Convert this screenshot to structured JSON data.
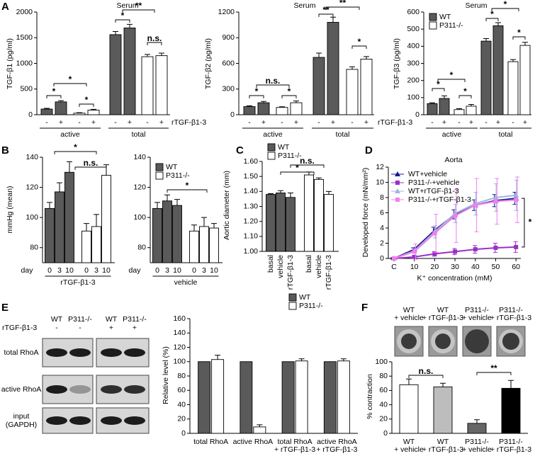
{
  "chart_data": [
    {
      "panel": "A",
      "type": "bar",
      "title": "Serum",
      "ylabel": "TGF-β1 (pg/ml)",
      "categories": [
        "active",
        "total"
      ],
      "treatments": [
        "-",
        "+"
      ],
      "series": [
        {
          "color": "#5a5a5a",
          "values": [
            [
              110,
              250
            ],
            [
              1560,
              1690
            ]
          ],
          "errors": [
            [
              15,
              25
            ],
            [
              60,
              70
            ]
          ]
        },
        {
          "color": "#ffffff",
          "values": [
            [
              30,
              90
            ],
            [
              1130,
              1150
            ]
          ],
          "errors": [
            [
              10,
              15
            ],
            [
              45,
              50
            ]
          ]
        }
      ],
      "ylim": [
        0,
        2000
      ],
      "yticks": [
        0,
        500,
        1000,
        1500,
        2000
      ],
      "annotations": [
        "*",
        "*",
        "*",
        "*",
        "**",
        "n.s."
      ]
    },
    {
      "type": "bar",
      "title": "Serum",
      "ylabel": "TGF-β2 (pg/ml)",
      "categories": [
        "active",
        "total"
      ],
      "treatments": [
        "-",
        "+"
      ],
      "treatment_axis_label": "rTGF-β1-3",
      "series": [
        {
          "color": "#5a5a5a",
          "values": [
            [
              95,
              140
            ],
            [
              670,
              1080
            ]
          ],
          "errors": [
            [
              10,
              15
            ],
            [
              50,
              60
            ]
          ]
        },
        {
          "color": "#ffffff",
          "values": [
            [
              85,
              140
            ],
            [
              530,
              650
            ]
          ],
          "errors": [
            [
              8,
              20
            ],
            [
              30,
              30
            ]
          ]
        }
      ],
      "ylim": [
        0,
        1200
      ],
      "yticks": [
        0,
        300,
        600,
        900,
        1200
      ],
      "annotations": [
        "*",
        "*",
        "n.s.",
        "**",
        "**",
        "*"
      ]
    },
    {
      "type": "bar",
      "title": "Serum",
      "ylabel": "TGF-β3 (pg/ml)",
      "categories": [
        "active",
        "total"
      ],
      "treatments": [
        "-",
        "+"
      ],
      "treatment_axis_label": "rTGF-β1-3",
      "series": [
        {
          "name": "WT",
          "color": "#5a5a5a",
          "values": [
            [
              65,
              95
            ],
            [
              430,
              520
            ]
          ],
          "errors": [
            [
              5,
              15
            ],
            [
              15,
              18
            ]
          ]
        },
        {
          "name": "P311-/-",
          "color": "#ffffff",
          "values": [
            [
              30,
              50
            ],
            [
              310,
              405
            ]
          ],
          "errors": [
            [
              5,
              10
            ],
            [
              12,
              18
            ]
          ]
        }
      ],
      "ylim": [
        0,
        600
      ],
      "yticks": [
        0,
        100,
        200,
        300,
        400,
        500,
        600
      ],
      "legend": "upper left",
      "annotations": [
        "*",
        "*",
        "*",
        "*",
        "*",
        "*"
      ]
    },
    {
      "panel": "B",
      "type": "bar",
      "ylabel": "mmHg (mean)",
      "x_prefix": "day",
      "xlabel": "rTGF-β1-3",
      "categories": [
        "0",
        "3",
        "10"
      ],
      "series": [
        {
          "color": "#5a5a5a",
          "values": [
            106,
            117,
            130
          ],
          "errors": [
            4,
            6,
            7
          ]
        },
        {
          "color": "#ffffff",
          "values": [
            91,
            94,
            128
          ],
          "errors": [
            5,
            8,
            7
          ]
        }
      ],
      "ylim": [
        70,
        140
      ],
      "yticks": [
        80,
        100,
        120,
        140
      ],
      "annotations": [
        "*",
        "n.s."
      ]
    },
    {
      "type": "bar",
      "x_prefix": "day",
      "xlabel": "vehicle",
      "categories": [
        "0",
        "3",
        "10"
      ],
      "series": [
        {
          "name": "WT",
          "color": "#5a5a5a",
          "values": [
            106,
            111,
            108
          ],
          "errors": [
            4,
            4,
            4
          ]
        },
        {
          "name": "P311-/-",
          "color": "#ffffff",
          "values": [
            91,
            94,
            93
          ],
          "errors": [
            4,
            6,
            3
          ]
        }
      ],
      "ylim": [
        70,
        140
      ],
      "yticks": [
        80,
        100,
        120,
        140
      ],
      "legend": "upper left",
      "annotations": [
        "*"
      ]
    },
    {
      "panel": "C",
      "type": "bar",
      "ylabel": "Aortic diameter (mm)",
      "categories": [
        "basal",
        "vehicle",
        "rTGF-β1-3"
      ],
      "series": [
        {
          "name": "WT",
          "color": "#5a5a5a",
          "values": [
            1.38,
            1.39,
            1.36
          ],
          "errors": [
            0.005,
            0.015,
            0.03
          ]
        },
        {
          "name": "P311-/-",
          "color": "#ffffff",
          "values": [
            1.51,
            1.48,
            1.38
          ],
          "errors": [
            0.02,
            0.01,
            0.02
          ]
        }
      ],
      "ylim": [
        1,
        1.6
      ],
      "yticks": [
        {
          "value": 1,
          "label": "1.00"
        },
        {
          "value": 1.1,
          "label": "1.10"
        },
        {
          "value": 1.2,
          "label": "1.20"
        },
        {
          "value": 1.3,
          "label": "1.30"
        },
        {
          "value": 1.4,
          "label": "1.40"
        },
        {
          "value": 1.5,
          "label": "1.50"
        },
        {
          "value": 1.6,
          "label": "1.60"
        }
      ],
      "legend": "top",
      "annotations": [
        "*",
        "n.s."
      ]
    },
    {
      "panel": "D",
      "type": "line",
      "title": "Aorta",
      "ylabel": "Developed force (mN/mm²)",
      "xlabel": "K⁺ concentration (mM)",
      "categories": [
        "C",
        "10",
        "20",
        "30",
        "40",
        "50",
        "60"
      ],
      "series": [
        {
          "name": "WT+vehicle",
          "color": "#1a1a8c",
          "values": [
            0,
            1.2,
            3.7,
            5.8,
            7.0,
            7.6,
            7.9
          ],
          "errors": [
            0.1,
            0.2,
            0.4,
            0.6,
            0.7,
            0.8,
            0.8
          ]
        },
        {
          "name": "P311-/-+vehicle",
          "color": "#9b30c8",
          "values": [
            0,
            0.2,
            0.6,
            0.9,
            1.2,
            1.4,
            1.5
          ],
          "errors": [
            0.1,
            0.2,
            0.3,
            0.4,
            0.5,
            0.6,
            0.7
          ]
        },
        {
          "name": "WT+rTGF-β1-3",
          "color": "#9fb6e0",
          "values": [
            0,
            1.0,
            3.5,
            5.9,
            7.2,
            8.0,
            8.3
          ],
          "errors": [
            0.1,
            0.3,
            0.8,
            1.2,
            1.5,
            1.8,
            2.0
          ]
        },
        {
          "name": "P311-/-+rTGF-β1-3",
          "color": "#f07ff0",
          "values": [
            0,
            0.9,
            3.3,
            5.6,
            7.0,
            7.5,
            7.7
          ],
          "errors": [
            0.1,
            1.0,
            2.5,
            3.5,
            3.5,
            3.0,
            3.0
          ]
        }
      ],
      "ylim": [
        0,
        12
      ],
      "yticks": [
        0,
        2,
        4,
        6,
        8,
        10,
        12
      ],
      "legend": "upper left",
      "annotations": [
        "*"
      ]
    },
    {
      "type": "bar",
      "ylabel": "Relative level (%)",
      "categories": [
        [
          "total RhoA"
        ],
        [
          "active RhoA"
        ],
        [
          "total RhoA",
          "+ rTGF-β1-3"
        ],
        [
          "active RhoA",
          "+ rTGF-β1-3"
        ]
      ],
      "series": [
        {
          "name": "WT",
          "color": "#5a5a5a",
          "values": [
            100,
            100,
            100,
            100
          ]
        },
        {
          "name": "P311-/-",
          "color": "#ffffff",
          "values": [
            103,
            9,
            101,
            101
          ],
          "errors": [
            6,
            3,
            3,
            3
          ]
        }
      ],
      "ylim": [
        0,
        160
      ],
      "yticks": [
        0,
        20,
        40,
        60,
        80,
        100,
        120,
        140,
        160
      ],
      "legend": "upper right"
    },
    {
      "panel": "F",
      "type": "bar",
      "ylabel": "% contraction",
      "categories": [
        [
          "WT",
          "+ vehicle"
        ],
        [
          "WT",
          "+ rTGF-β1-3"
        ],
        [
          "P311-/-",
          "+ vehicle"
        ],
        [
          "P311-/-",
          "+ rTGF-β1-3"
        ]
      ],
      "values": [
        68,
        65,
        14,
        63
      ],
      "errors": [
        8,
        5,
        5,
        11
      ],
      "colors": [
        "#ffffff",
        "#bdbdbd",
        "#666666",
        "#000000"
      ],
      "ylim": [
        0,
        100
      ],
      "yticks": [
        0,
        20,
        40,
        60,
        80,
        100
      ],
      "annotations": [
        "n.s.",
        "**"
      ]
    }
  ],
  "blot": {
    "panel": "E",
    "treatment_label": "rTGF-β1-3",
    "genotypes": [
      "WT",
      "P311-/-",
      "WT",
      "P311-/-"
    ],
    "treatments": [
      "-",
      "-",
      "+",
      "+"
    ],
    "rows": [
      [
        "total RhoA"
      ],
      [
        "active RhoA"
      ],
      [
        "input",
        "(GAPDH)"
      ]
    ]
  }
}
